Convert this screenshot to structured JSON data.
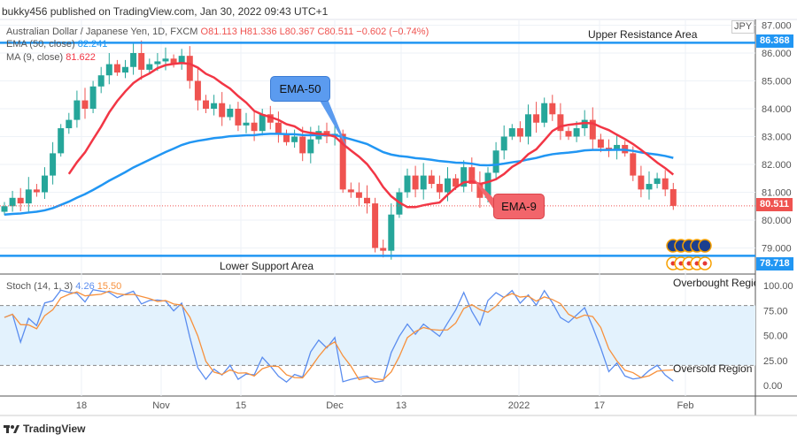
{
  "header": {
    "published": "bukky456 published on TradingView.com, Jan 30, 2022 09:43 UTC+1"
  },
  "legend": {
    "symbol": "Australian Dollar / Japanese Yen, 1D, FXCM",
    "open": "O81.113",
    "high": "H81.336",
    "low": "L80.367",
    "close": "C80.511",
    "change": "−0.602 (−0.74%)",
    "ema_label": "EMA (50, close)",
    "ema_value": "82.241",
    "ma_label": "MA (9, close)",
    "ma_value": "81.622",
    "stoch_label": "Stoch (14, 1, 3)",
    "stoch_k": "4.26",
    "stoch_d": "15.50"
  },
  "annotations": {
    "resistance": "Upper Resistance Area",
    "support": "Lower Support Area",
    "ema50": "EMA-50",
    "ema9": "EMA-9",
    "overbought": "Overbought Region",
    "oversold": "Oversold Region"
  },
  "axis": {
    "currency": "JPY",
    "resistance_price": "86.368",
    "support_price": "78.718",
    "last_price": "80.511"
  },
  "footer": {
    "brand": "TradingView"
  },
  "colors": {
    "up": "#26a69a",
    "down": "#ef5350",
    "ema50": "#2196f3",
    "ma9": "#f23645",
    "stoch_k": "#5b8def",
    "stoch_d": "#f7913d",
    "band": "#e3f2fd"
  },
  "chart_data": {
    "type": "candlestick",
    "price_ticks": [
      87,
      86,
      85,
      84,
      83,
      82,
      81,
      80,
      79
    ],
    "price_range": [
      78.3,
      87.2
    ],
    "stoch_ticks": [
      100,
      75,
      50,
      25,
      0
    ],
    "stoch_bands": [
      80,
      20
    ],
    "x_ticks": [
      "18",
      "Nov",
      "15",
      "Dec",
      "13",
      "2022",
      "17",
      "Feb"
    ],
    "resistance": 86.368,
    "support": 78.718,
    "last_candle": {
      "open": 81.113,
      "high": 81.336,
      "low": 80.367,
      "close": 80.511
    },
    "closes": [
      80.5,
      80.8,
      80.6,
      81.1,
      81.0,
      81.6,
      82.4,
      83.3,
      83.6,
      84.3,
      84.0,
      84.8,
      85.2,
      85.6,
      85.3,
      85.5,
      86.0,
      85.4,
      85.6,
      85.7,
      85.8,
      85.6,
      85.9,
      85.0,
      84.3,
      84.0,
      84.2,
      83.7,
      84.0,
      83.4,
      83.5,
      83.2,
      83.8,
      83.5,
      83.1,
      82.8,
      83.0,
      82.4,
      82.9,
      83.2,
      83.0,
      83.1,
      81.1,
      81.0,
      80.8,
      80.6,
      79.0,
      78.9,
      80.2,
      81.0,
      81.6,
      81.1,
      81.6,
      81.3,
      81.0,
      81.5,
      81.2,
      81.9,
      81.3,
      80.8,
      81.7,
      82.5,
      83.0,
      83.3,
      83.0,
      83.8,
      83.5,
      84.2,
      83.8,
      83.2,
      83.0,
      83.3,
      83.6,
      82.9,
      82.6,
      82.5,
      82.7,
      82.4,
      81.6,
      81.1,
      81.3,
      81.5,
      81.1,
      80.511
    ]
  }
}
